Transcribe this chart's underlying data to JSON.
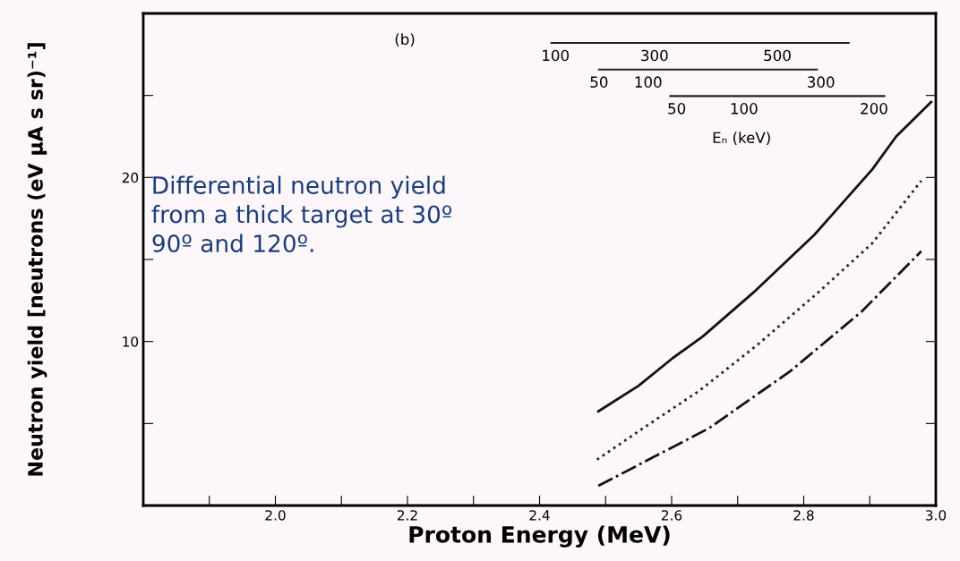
{
  "chart_data": {
    "type": "line",
    "xlabel": "Proton Energy (MeV)",
    "ylabel": "Neutron yield [neutrons (eV μA s sr)⁻¹]",
    "xlim": [
      1.8,
      3.0
    ],
    "ylim": [
      0,
      30
    ],
    "xticks": [
      {
        "value": 1.9,
        "label": null
      },
      {
        "value": 2.0,
        "label": "2.0"
      },
      {
        "value": 2.1,
        "label": null
      },
      2.2,
      {
        "value": 2.3,
        "label": null
      },
      2.4,
      {
        "value": 2.5,
        "label": null
      },
      2.6,
      {
        "value": 2.7,
        "label": null
      },
      2.8,
      {
        "value": 2.9,
        "label": null
      },
      {
        "value": 3.0,
        "label": "3.0"
      }
    ],
    "yticks": [
      {
        "value": 5,
        "label": null
      },
      10,
      {
        "value": 15,
        "label": null
      },
      20,
      {
        "value": 25,
        "label": null
      }
    ],
    "grid": false,
    "legend": false,
    "marker": "none",
    "series": [
      {
        "color": "#111111",
        "line_style": "solid",
        "x": [
          2.489,
          2.55,
          2.602,
          2.647,
          2.727,
          2.816,
          2.904,
          2.94,
          2.993
        ],
        "values": [
          5.74,
          7.3,
          9.0,
          10.3,
          13.1,
          16.5,
          20.5,
          22.5,
          24.6
        ]
      },
      {
        "color": "#222222",
        "line_style": "dotted",
        "x": [
          2.487,
          2.56,
          2.642,
          2.73,
          2.825,
          2.904,
          2.978
        ],
        "values": [
          2.8,
          4.8,
          7.0,
          9.8,
          13.1,
          16.0,
          19.8
        ]
      },
      {
        "color": "#111111",
        "line_style": "dashdot",
        "x": [
          2.489,
          2.57,
          2.656,
          2.78,
          2.887,
          2.978
        ],
        "values": [
          1.2,
          2.9,
          4.7,
          8.2,
          11.8,
          15.5
        ]
      }
    ],
    "annotations": [
      "(b)",
      "100",
      "300",
      "500",
      "50",
      "100",
      "300",
      "50",
      "100",
      "200",
      "Eₙ (keV)",
      "Differential neutron yield\nfrom a thick target at 30º\n90º and 120º."
    ]
  }
}
